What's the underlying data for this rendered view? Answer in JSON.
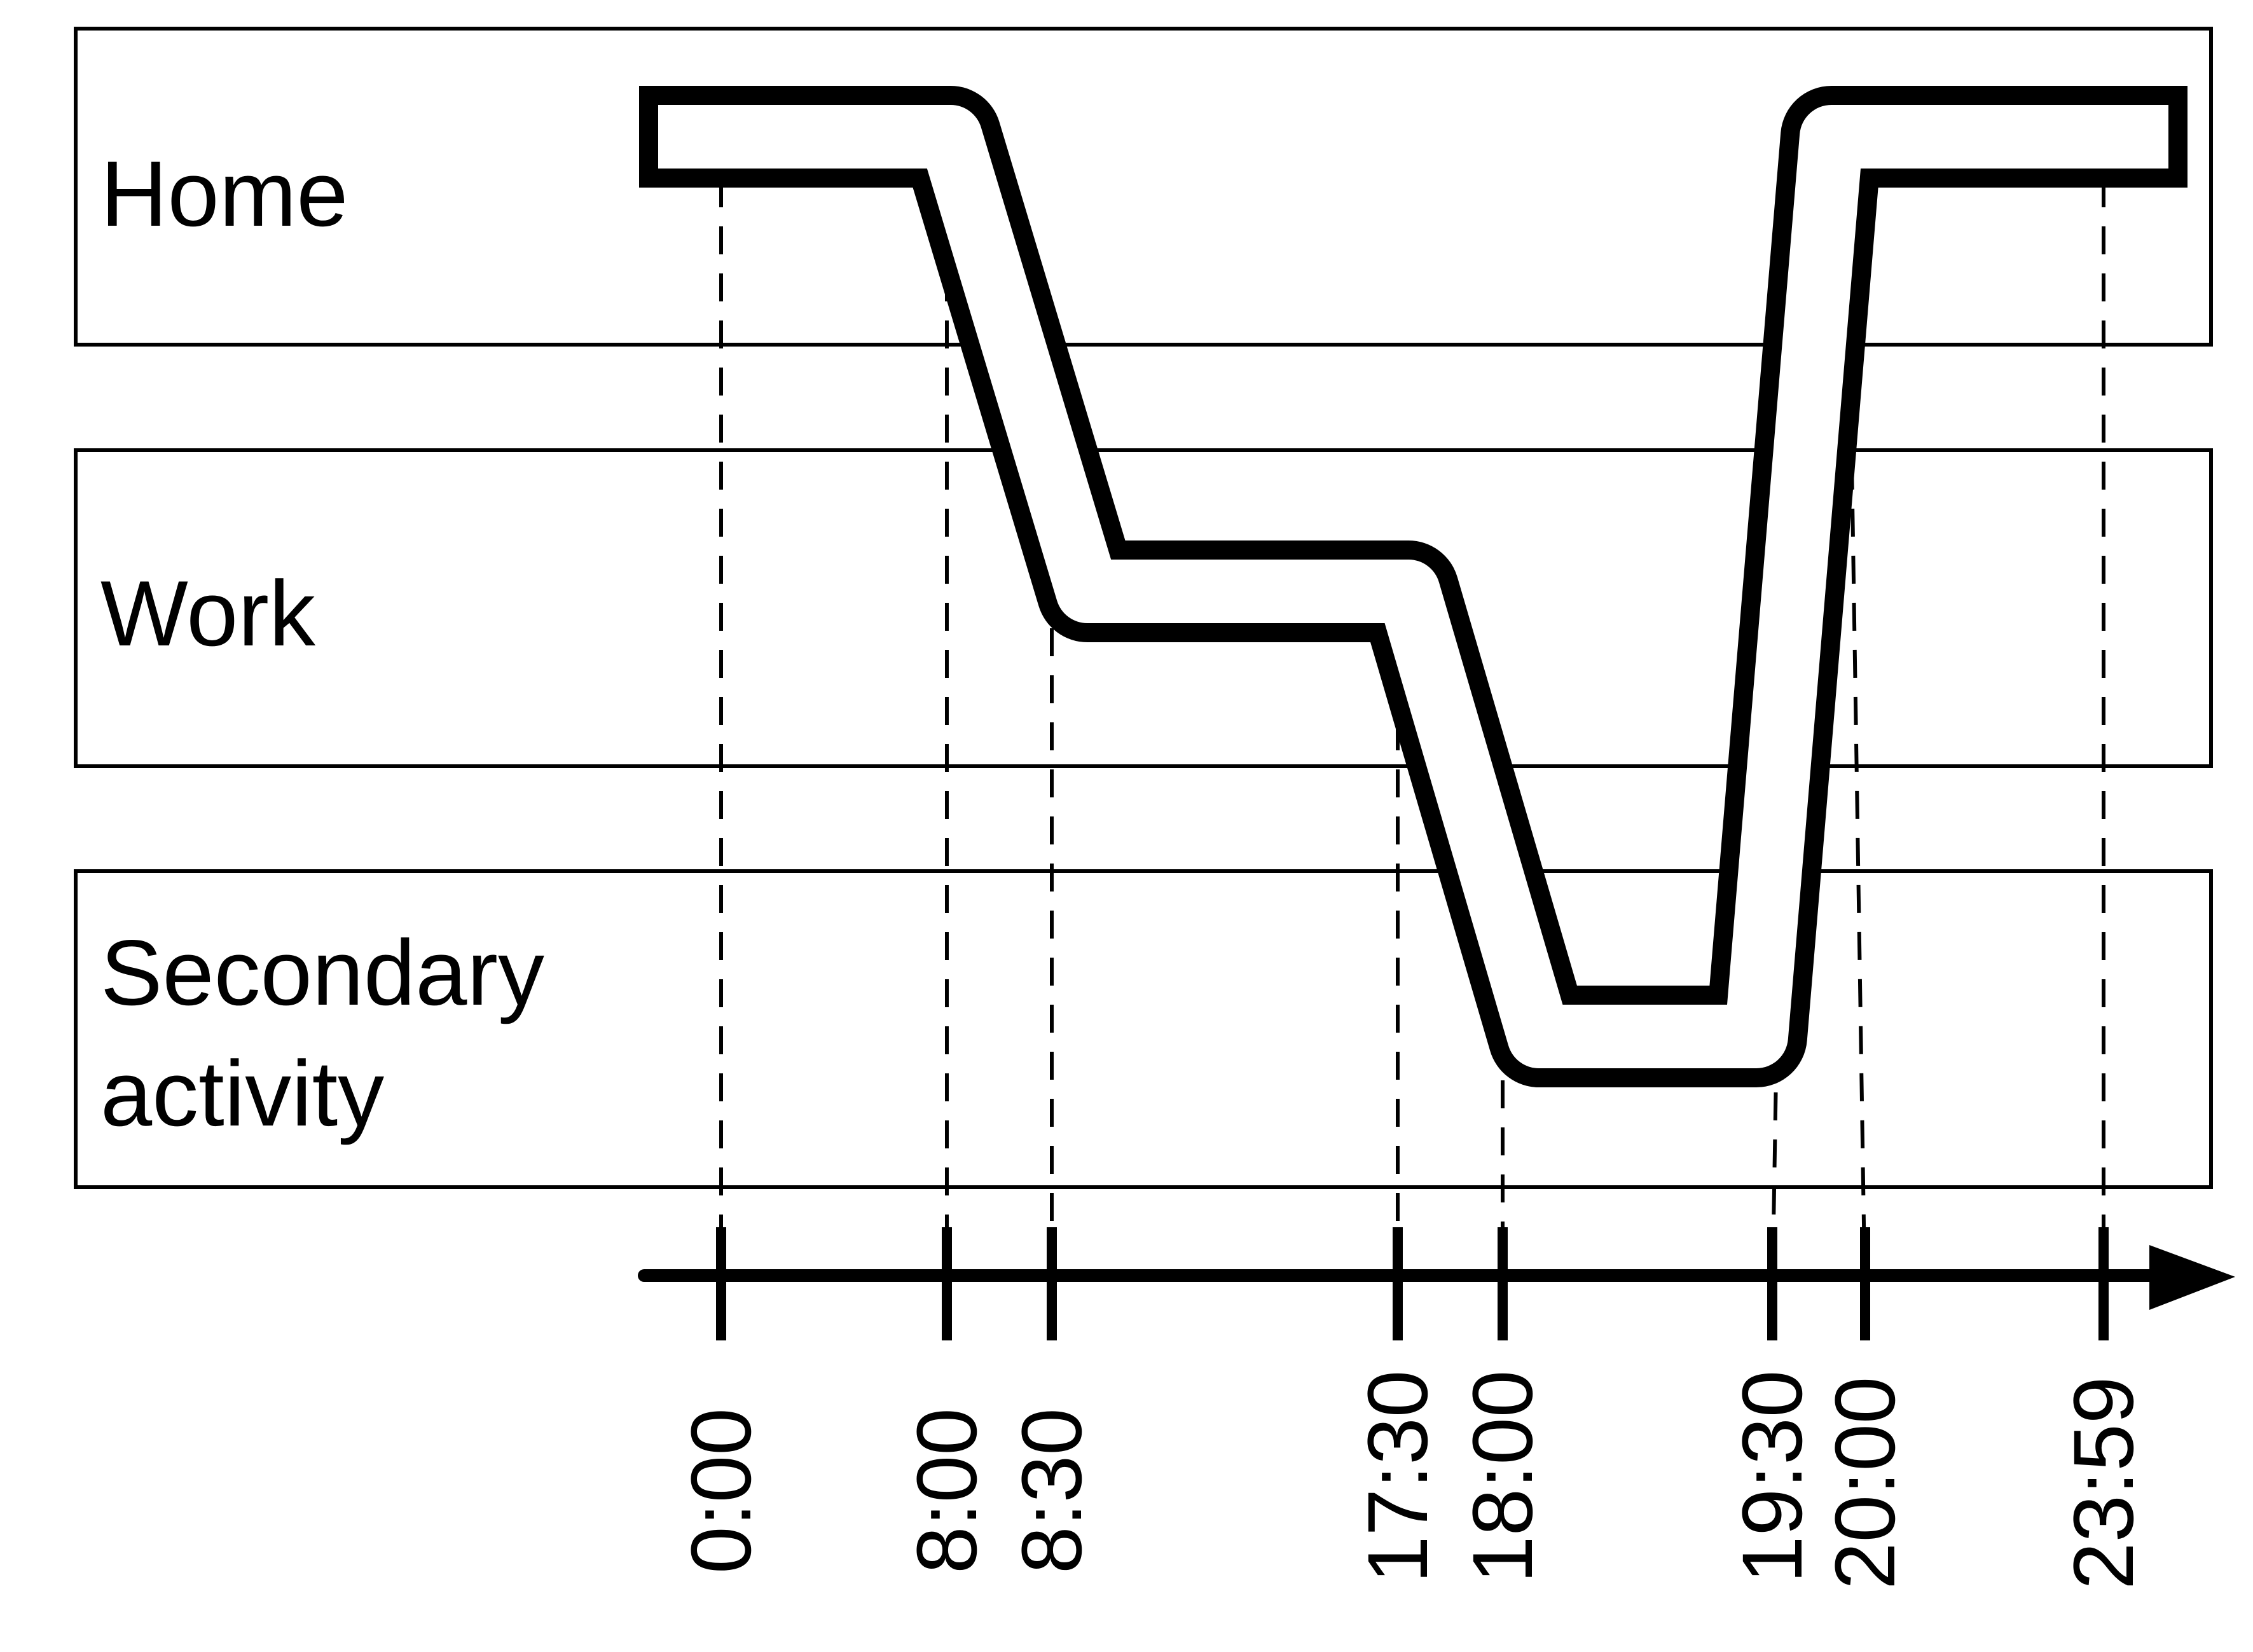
{
  "diagram": {
    "zones": [
      {
        "id": "home",
        "label_lines": [
          "Home"
        ]
      },
      {
        "id": "work",
        "label_lines": [
          "Work"
        ]
      },
      {
        "id": "secondary",
        "label_lines": [
          "Secondary",
          "activity"
        ]
      }
    ],
    "time_axis": {
      "ticks": [
        "0:00",
        "8:00",
        "8:30",
        "17:30",
        "18:00",
        "19:30",
        "20:00",
        "23:59"
      ]
    },
    "colors": {
      "line": "#000000",
      "background": "#ffffff"
    }
  }
}
